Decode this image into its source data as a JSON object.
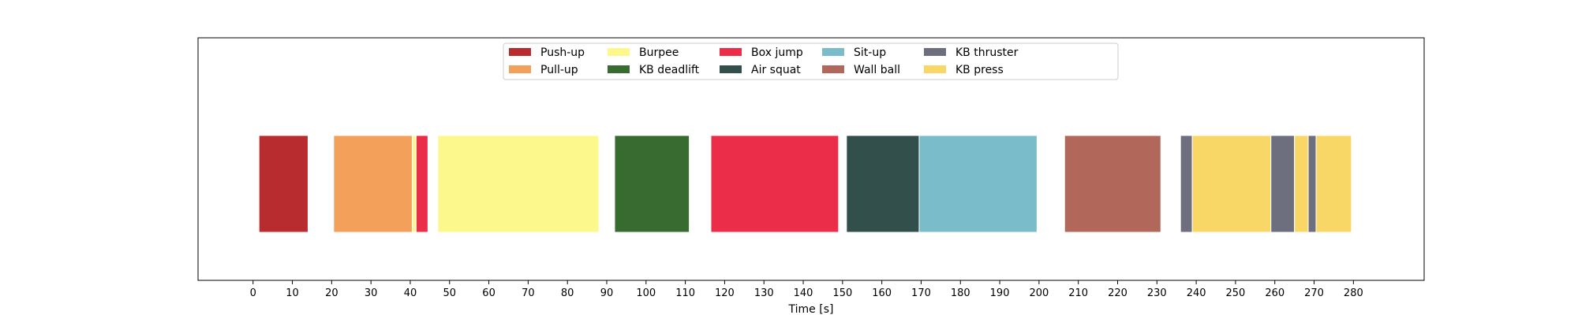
{
  "chart_data": {
    "type": "bar",
    "subtype": "broken-horizontal-bar (timeline)",
    "title": "",
    "xlabel": "Time [s]",
    "ylabel": "",
    "xlim": [
      -14,
      298
    ],
    "xticks": [
      0,
      10,
      20,
      30,
      40,
      50,
      60,
      70,
      80,
      90,
      100,
      110,
      120,
      130,
      140,
      150,
      160,
      170,
      180,
      190,
      200,
      210,
      220,
      230,
      240,
      250,
      260,
      270,
      280
    ],
    "grid": false,
    "legend_position": "upper center",
    "legend_columns": 6,
    "legend": [
      {
        "label": "Push-up",
        "color": "#b82b2e"
      },
      {
        "label": "Pull-up",
        "color": "#f3a05a"
      },
      {
        "label": "Burpee",
        "color": "#fdf88b"
      },
      {
        "label": "KB deadlift",
        "color": "#386b30"
      },
      {
        "label": "Box jump",
        "color": "#eb2d49"
      },
      {
        "label": "Air squat",
        "color": "#324f4c"
      },
      {
        "label": "Sit-up",
        "color": "#7bbcca"
      },
      {
        "label": "Wall ball",
        "color": "#b1685a"
      },
      {
        "label": "KB thruster",
        "color": "#6d6f7e"
      },
      {
        "label": "KB press",
        "color": "#f9d766"
      }
    ],
    "segments": [
      {
        "exercise": "Push-up",
        "start": 1.5,
        "end": 14
      },
      {
        "exercise": "Pull-up",
        "start": 20.5,
        "end": 40.5
      },
      {
        "exercise": "Burpee",
        "start": 40.5,
        "end": 41.5
      },
      {
        "exercise": "Box jump",
        "start": 41.5,
        "end": 44.5
      },
      {
        "exercise": "Burpee",
        "start": 47,
        "end": 88
      },
      {
        "exercise": "KB deadlift",
        "start": 92,
        "end": 111
      },
      {
        "exercise": "Box jump",
        "start": 116.5,
        "end": 149
      },
      {
        "exercise": "Air squat",
        "start": 151,
        "end": 169.5
      },
      {
        "exercise": "Sit-up",
        "start": 169.5,
        "end": 199.5
      },
      {
        "exercise": "Wall ball",
        "start": 206.5,
        "end": 231
      },
      {
        "exercise": "KB thruster",
        "start": 236,
        "end": 239
      },
      {
        "exercise": "KB press",
        "start": 239,
        "end": 259
      },
      {
        "exercise": "KB thruster",
        "start": 259,
        "end": 265
      },
      {
        "exercise": "KB press",
        "start": 265,
        "end": 268.5
      },
      {
        "exercise": "KB thruster",
        "start": 268.5,
        "end": 270.5
      },
      {
        "exercise": "KB press",
        "start": 270.5,
        "end": 279.5
      }
    ]
  }
}
